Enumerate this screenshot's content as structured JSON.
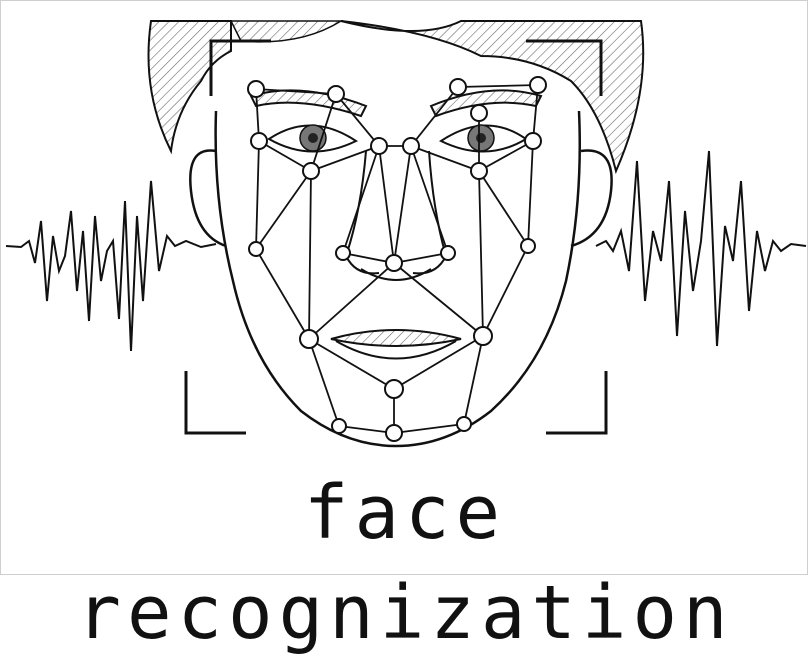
{
  "caption": {
    "text": "face recognization"
  },
  "colors": {
    "ink": "#111111",
    "hatch": "#6b6b6b",
    "background": "#ffffff"
  },
  "icons": {
    "illustration": "face-mesh-sketch-icon"
  }
}
